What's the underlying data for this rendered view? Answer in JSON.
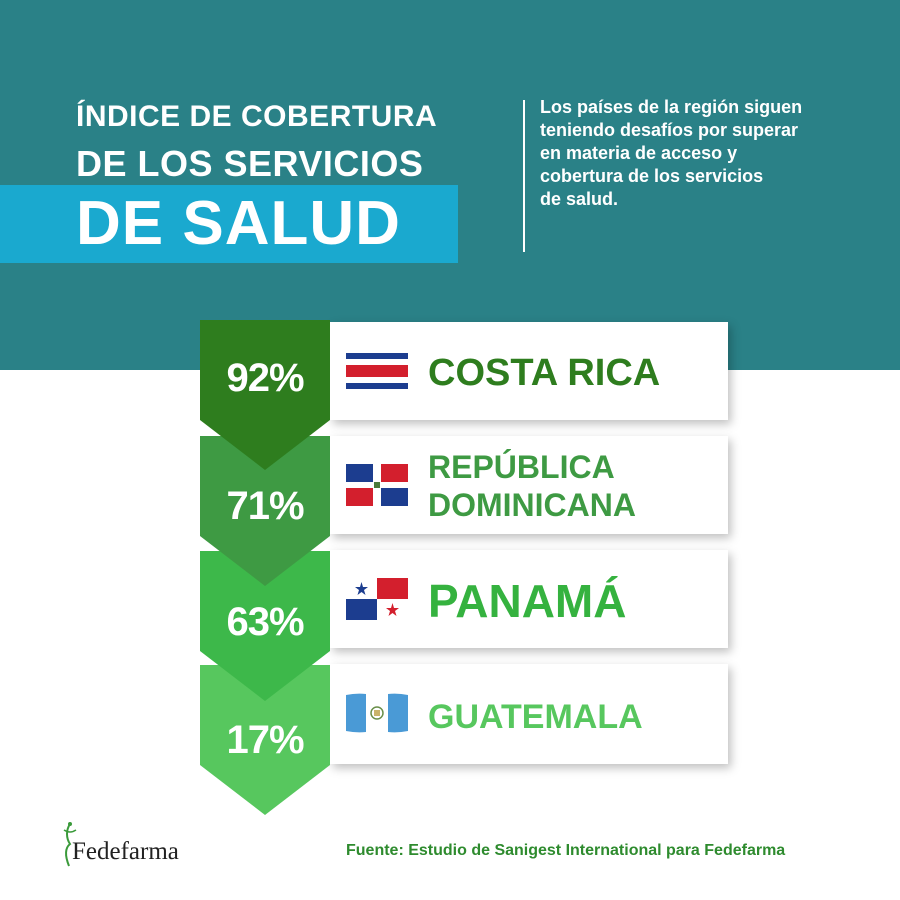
{
  "header": {
    "title_line1": "ÍNDICE DE COBERTURA",
    "title_line2": "DE LOS SERVICIOS",
    "title_line3": "DE SALUD",
    "description_lines": [
      "Los países de la región siguen",
      "teniendo desafíos por superar",
      "en materia de acceso y",
      "cobertura de los servicios",
      "de salud."
    ]
  },
  "chart_data": {
    "type": "table",
    "categories": [
      "COSTA RICA",
      "REPÚBLICA DOMINICANA",
      "PANAMÁ",
      "GUATEMALA"
    ],
    "values": [
      92,
      71,
      63,
      17
    ],
    "value_labels": [
      "92%",
      "71%",
      "63%",
      "17%"
    ],
    "category_lines": [
      [
        "COSTA RICA"
      ],
      [
        "REPÚBLICA",
        "DOMINICANA"
      ],
      [
        "PANAMÁ"
      ],
      [
        "GUATEMALA"
      ]
    ],
    "flags": [
      "costa-rica-flag",
      "dominican-republic-flag",
      "panama-flag",
      "guatemala-flag"
    ],
    "colors": [
      "#2e7d1e",
      "#3e9a43",
      "#3db84a",
      "#57c75e"
    ],
    "text_colors": [
      "#2e7d1e",
      "#3e9a43",
      "#35b23f",
      "#57c75e"
    ]
  },
  "footer": {
    "logo_text": "Fedefarma",
    "source": "Fuente: Estudio de Sanigest International para Fedefarma"
  },
  "colors": {
    "header_bg": "#2a8187",
    "title_band": "#1aa9cf"
  }
}
